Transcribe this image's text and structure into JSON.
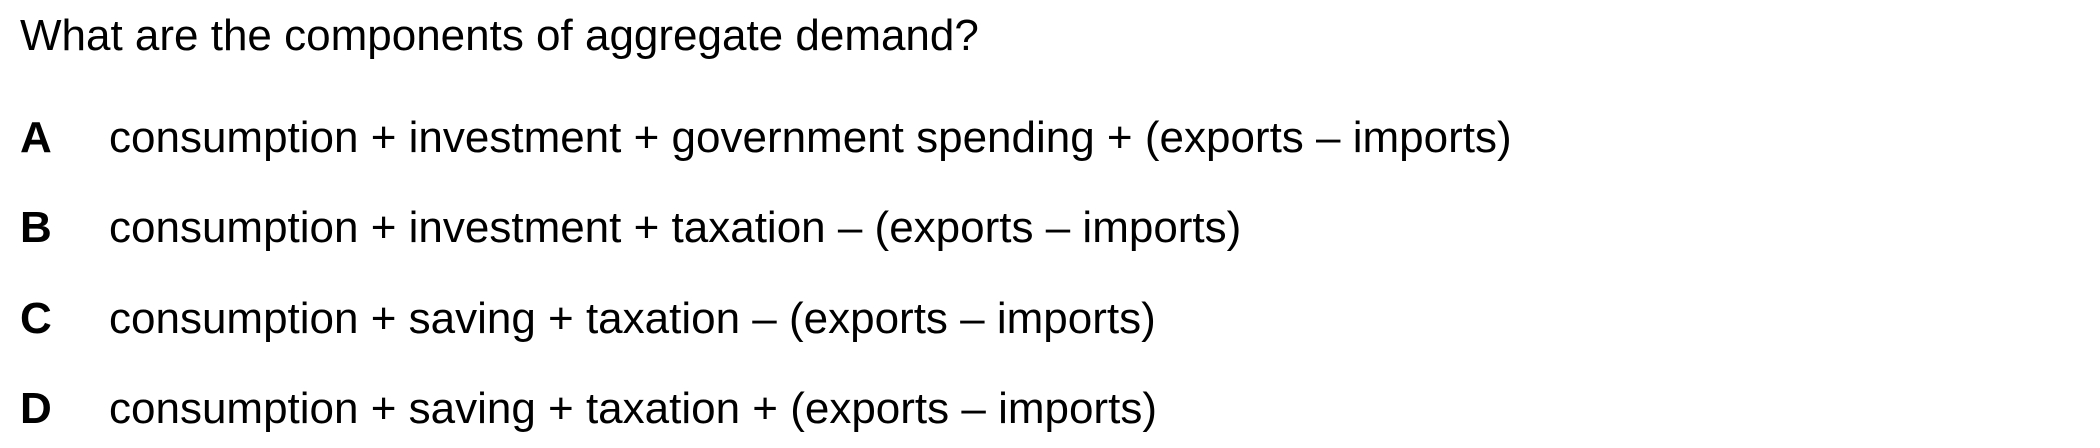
{
  "question": {
    "text": "What are the components of aggregate demand?"
  },
  "options": [
    {
      "letter": "A",
      "text": "consumption + investment + government spending + (exports – imports)"
    },
    {
      "letter": "B",
      "text": "consumption + investment + taxation – (exports – imports)"
    },
    {
      "letter": "C",
      "text": "consumption + saving + taxation – (exports – imports)"
    },
    {
      "letter": "D",
      "text": "consumption + saving + taxation + (exports – imports)"
    }
  ]
}
